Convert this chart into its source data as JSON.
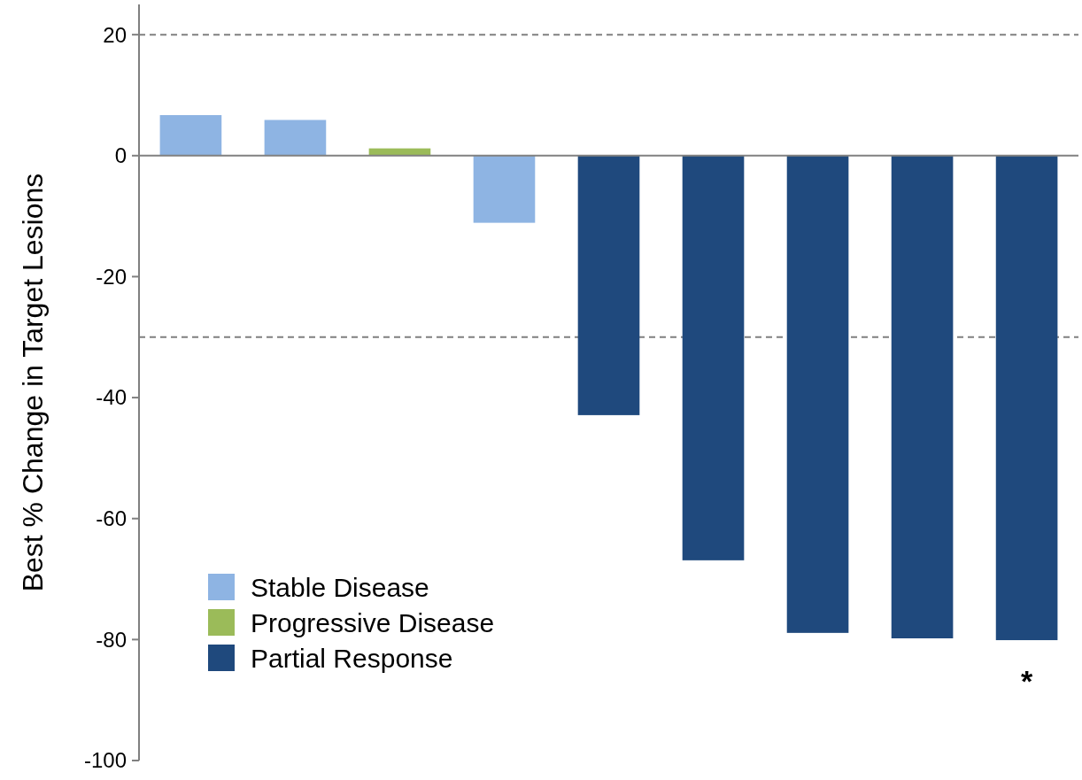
{
  "chart_data": {
    "type": "bar",
    "ylabel": "Best % Change in Target Lesions",
    "categories": [
      null,
      null,
      null,
      null,
      null,
      null,
      null,
      null,
      null
    ],
    "series": [
      {
        "name": "Stable Disease",
        "color": "#8eb4e3",
        "values": [
          6.7,
          5.9,
          null,
          -11.1,
          null,
          null,
          null,
          null,
          null
        ]
      },
      {
        "name": "Progressive Disease",
        "color": "#9bbb59",
        "values": [
          null,
          null,
          1.2,
          null,
          null,
          null,
          null,
          null,
          null
        ]
      },
      {
        "name": "Partial Response",
        "color": "#1f497d",
        "values": [
          null,
          null,
          null,
          null,
          -42.9,
          -66.9,
          -78.9,
          -79.8,
          -80.1
        ]
      }
    ],
    "ylim": [
      -100,
      25
    ],
    "yticks": [
      -100,
      -80,
      -60,
      -40,
      -20,
      0,
      20
    ],
    "ref_lines": [
      {
        "axis": "y",
        "value": 20,
        "color": "#808080",
        "line_style": "dashed"
      },
      {
        "axis": "y",
        "value": -30,
        "color": "#808080",
        "line_style": "dashed"
      }
    ],
    "annotations": [
      "*"
    ],
    "legend": "bottom left",
    "grid": false
  }
}
